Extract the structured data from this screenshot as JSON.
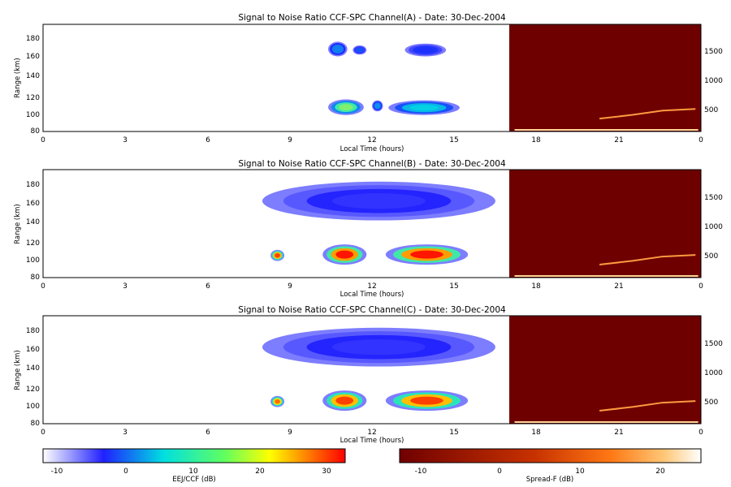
{
  "chart_data": [
    {
      "type": "heatmap",
      "title": "Signal to Noise Ratio CCF-SPC Channel(A) - Date: 30-Dec-2004",
      "xlabel": "Local Time (hours)",
      "ylabel": "Range (km)",
      "x_ticks": [
        "0",
        "3",
        "6",
        "9",
        "12",
        "15",
        "18",
        "21",
        "0"
      ],
      "y_ticks": [
        "80",
        "100",
        "120",
        "140",
        "160",
        "180"
      ],
      "y2_ticks": [
        "500",
        "1000",
        "1500"
      ],
      "xlim": [
        0,
        24
      ],
      "ylim_left": [
        78,
        195
      ],
      "ylim_right": [
        0,
        2000
      ],
      "grid": false,
      "left_region": {
        "x_range_hours": [
          0,
          17
        ],
        "colorbar": "EEJ/CCF (dB)"
      },
      "right_region": {
        "x_range_hours": [
          17,
          24
        ],
        "colorbar": "Spread-F (dB)",
        "background_db": -15
      },
      "blobs": [
        {
          "x": [
            10.4,
            11.1
          ],
          "y": [
            160,
            176
          ],
          "peak_db": 3
        },
        {
          "x": [
            11.3,
            11.8
          ],
          "y": [
            162,
            172
          ],
          "peak_db": 0
        },
        {
          "x": [
            13.2,
            14.7
          ],
          "y": [
            160,
            174
          ],
          "peak_db": -2
        },
        {
          "x": [
            10.4,
            11.7
          ],
          "y": [
            96,
            113
          ],
          "peak_db": 15
        },
        {
          "x": [
            12.0,
            12.4
          ],
          "y": [
            100,
            112
          ],
          "peak_db": 4
        },
        {
          "x": [
            12.6,
            15.2
          ],
          "y": [
            96,
            112
          ],
          "peak_db": 8
        }
      ]
    },
    {
      "type": "heatmap",
      "title": "Signal to Noise Ratio CCF-SPC Channel(B) - Date: 30-Dec-2004",
      "xlabel": "Local Time (hours)",
      "ylabel": "Range (km)",
      "x_ticks": [
        "0",
        "3",
        "6",
        "9",
        "12",
        "15",
        "18",
        "21",
        "0"
      ],
      "y_ticks": [
        "80",
        "100",
        "120",
        "140",
        "160",
        "180"
      ],
      "y2_ticks": [
        "500",
        "1000",
        "1500"
      ],
      "xlim": [
        0,
        24
      ],
      "ylim_left": [
        78,
        195
      ],
      "ylim_right": [
        0,
        2000
      ],
      "grid": false,
      "left_region": {
        "x_range_hours": [
          0,
          17
        ],
        "colorbar": "EEJ/CCF (dB)"
      },
      "right_region": {
        "x_range_hours": [
          17,
          24
        ],
        "colorbar": "Spread-F (dB)",
        "background_db": -15
      },
      "blobs": [
        {
          "x": [
            8.0,
            16.5
          ],
          "y": [
            140,
            182
          ],
          "peak_db": -4
        },
        {
          "x": [
            8.3,
            8.8
          ],
          "y": [
            96,
            108
          ],
          "peak_db": 30
        },
        {
          "x": [
            10.2,
            11.8
          ],
          "y": [
            92,
            114
          ],
          "peak_db": 32
        },
        {
          "x": [
            12.5,
            15.5
          ],
          "y": [
            92,
            114
          ],
          "peak_db": 32
        }
      ]
    },
    {
      "type": "heatmap",
      "title": "Signal to Noise Ratio CCF-SPC Channel(C) - Date: 30-Dec-2004",
      "xlabel": "Local Time (hours)",
      "ylabel": "Range (km)",
      "x_ticks": [
        "0",
        "3",
        "6",
        "9",
        "12",
        "15",
        "18",
        "21",
        "0"
      ],
      "y_ticks": [
        "80",
        "100",
        "120",
        "140",
        "160",
        "180"
      ],
      "y2_ticks": [
        "500",
        "1000",
        "1500"
      ],
      "xlim": [
        0,
        24
      ],
      "ylim_left": [
        78,
        195
      ],
      "ylim_right": [
        0,
        2000
      ],
      "grid": false,
      "left_region": {
        "x_range_hours": [
          0,
          17
        ],
        "colorbar": "EEJ/CCF (dB)"
      },
      "right_region": {
        "x_range_hours": [
          17,
          24
        ],
        "colorbar": "Spread-F (dB)",
        "background_db": -15
      },
      "blobs": [
        {
          "x": [
            8.0,
            16.5
          ],
          "y": [
            140,
            182
          ],
          "peak_db": -4
        },
        {
          "x": [
            8.3,
            8.8
          ],
          "y": [
            96,
            108
          ],
          "peak_db": 28
        },
        {
          "x": [
            10.2,
            11.8
          ],
          "y": [
            92,
            114
          ],
          "peak_db": 30
        },
        {
          "x": [
            12.5,
            15.5
          ],
          "y": [
            92,
            114
          ],
          "peak_db": 30
        }
      ]
    }
  ],
  "colorbars": [
    {
      "label": "EEJ/CCF (dB)",
      "ticks": [
        "-10",
        "0",
        "10",
        "20",
        "30"
      ],
      "range": [
        -15,
        33
      ],
      "colors": [
        "#ffffff",
        "#2020ff",
        "#00e0e0",
        "#ffff00",
        "#ff0000"
      ]
    },
    {
      "label": "Spread-F (dB)",
      "ticks": [
        "-10",
        "0",
        "10",
        "20"
      ],
      "range": [
        -15,
        25
      ],
      "colors": [
        "#700000",
        "#c83200",
        "#ff7814",
        "#ffc878",
        "#ffffff"
      ]
    }
  ],
  "colors": {
    "eej_bg": "#ffffff",
    "spreadf_bg": "#6e0000",
    "spreadf_trace": "#ff9a40",
    "spreadf_base": "#ffd79a"
  }
}
